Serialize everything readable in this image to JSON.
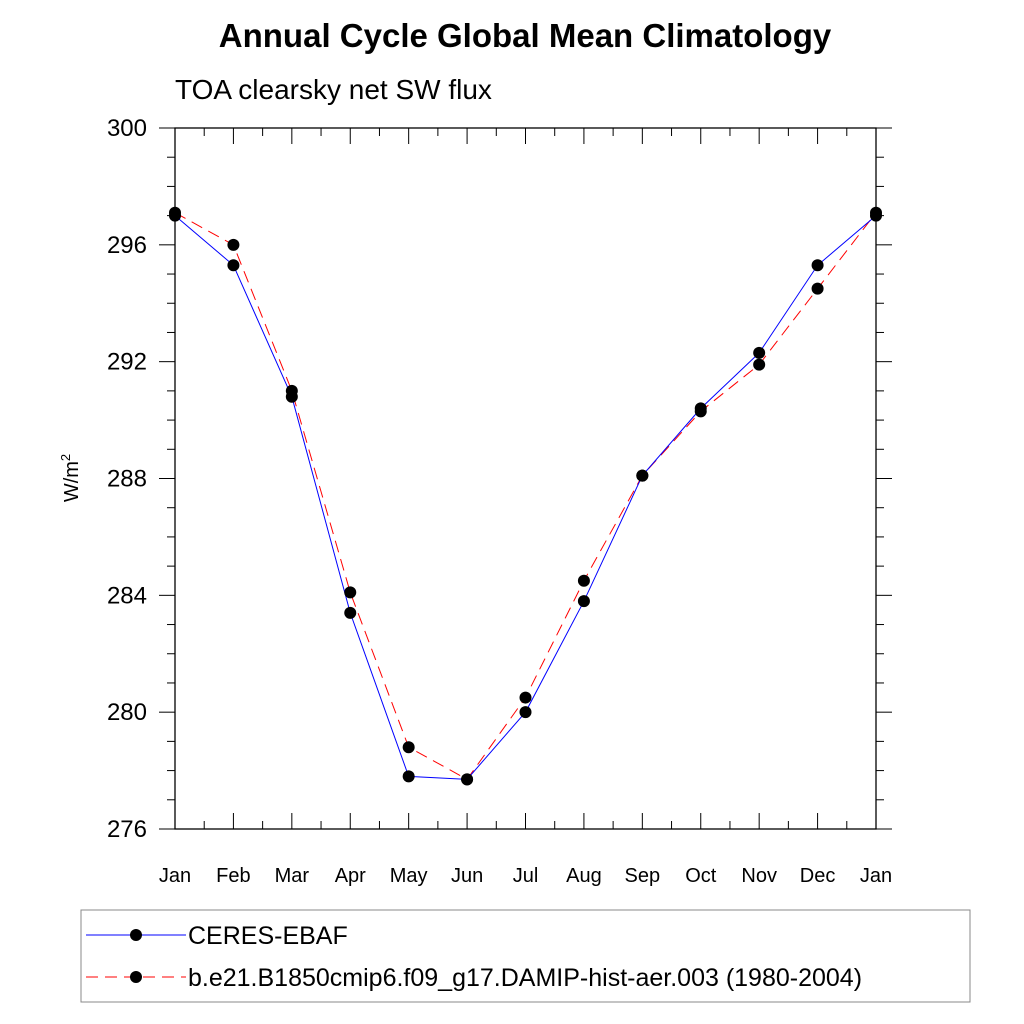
{
  "chart_data": {
    "type": "line",
    "title": "Annual Cycle Global Mean Climatology",
    "subtitle": "TOA clearsky net SW flux",
    "ylabel": "W/m",
    "ylabel_superscript": "2",
    "xlabel": "",
    "categories": [
      "Jan",
      "Feb",
      "Mar",
      "Apr",
      "May",
      "Jun",
      "Jul",
      "Aug",
      "Sep",
      "Oct",
      "Nov",
      "Dec",
      "Jan"
    ],
    "ylim": [
      276,
      300
    ],
    "yticks": [
      276,
      280,
      284,
      288,
      292,
      296,
      300
    ],
    "ytick_labels": [
      "276",
      "280",
      "284",
      "288",
      "292",
      "296",
      "300"
    ],
    "grid": false,
    "legend_position": "bottom",
    "series": [
      {
        "name": "CERES-EBAF",
        "color": "#0000ff",
        "line_style": "solid",
        "marker": "filled-circle",
        "values": [
          297.0,
          295.3,
          290.8,
          283.4,
          277.8,
          277.7,
          280.0,
          283.8,
          288.1,
          290.4,
          292.3,
          295.3,
          297.0
        ]
      },
      {
        "name": "b.e21.B1850cmip6.f09_g17.DAMIP-hist-aer.003 (1980-2004)",
        "color": "#ff0000",
        "line_style": "dashed",
        "marker": "filled-circle",
        "values": [
          297.1,
          296.0,
          291.0,
          284.1,
          278.8,
          277.7,
          280.5,
          284.5,
          288.1,
          290.3,
          291.9,
          294.5,
          297.1
        ]
      }
    ]
  }
}
